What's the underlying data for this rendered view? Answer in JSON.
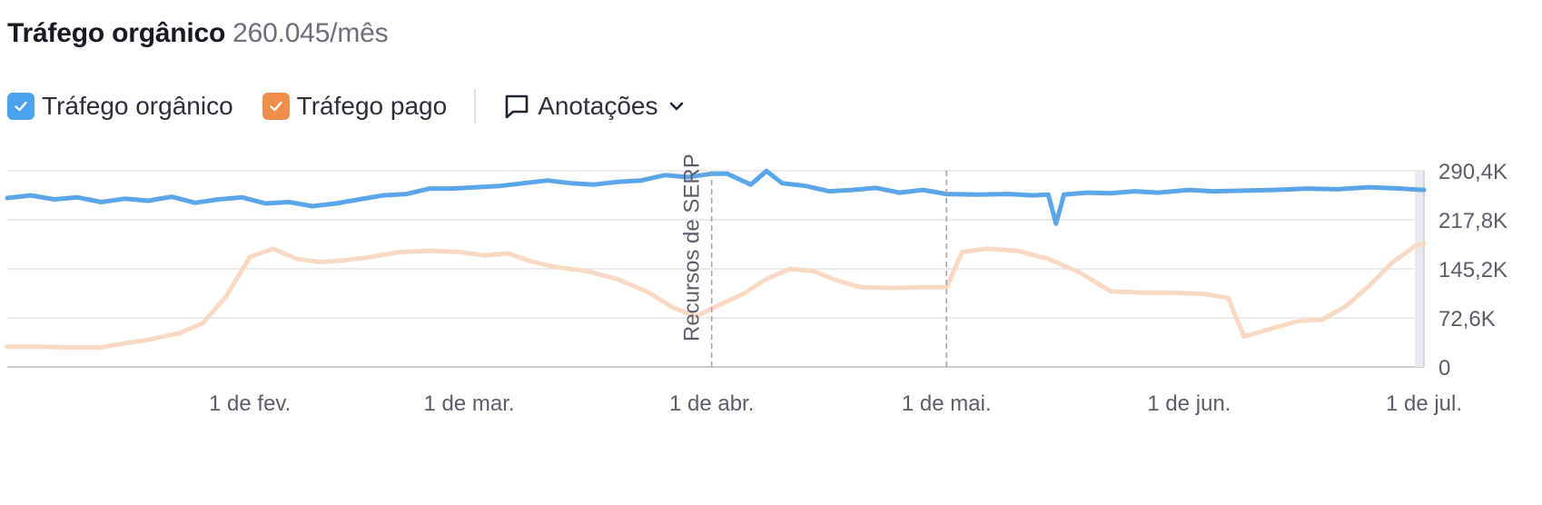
{
  "header": {
    "title": "Tráfego orgânico",
    "value": "260.045/mês"
  },
  "controls": {
    "organic_label": "Tráfego orgânico",
    "paid_label": "Tráfego pago",
    "annotations_label": "Anotações"
  },
  "colors": {
    "organic": "#5aa6e8",
    "paid": "#f9d9c4",
    "organic_checkbox": "#4aa3ec",
    "paid_checkbox": "#f08e4c"
  },
  "chart_data": {
    "type": "line",
    "title": "",
    "x_axis": {
      "type": "date",
      "range": [
        "2023-01-01",
        "2023-07-01"
      ],
      "ticks": [
        {
          "date": "2023-02-01",
          "label": "1 de fev."
        },
        {
          "date": "2023-03-01",
          "label": "1 de mar."
        },
        {
          "date": "2023-04-01",
          "label": "1 de abr."
        },
        {
          "date": "2023-05-01",
          "label": "1 de mai."
        },
        {
          "date": "2023-06-01",
          "label": "1 de jun."
        },
        {
          "date": "2023-07-01",
          "label": "1 de jul."
        }
      ]
    },
    "y_axis": {
      "position": "right",
      "range": [
        0,
        290400
      ],
      "ticks": [
        {
          "value": 290400,
          "label": "290,4K"
        },
        {
          "value": 217800,
          "label": "217,8K"
        },
        {
          "value": 145200,
          "label": "145,2K"
        },
        {
          "value": 72600,
          "label": "72,6K"
        },
        {
          "value": 0,
          "label": "0"
        }
      ]
    },
    "grid": true,
    "annotations": [
      {
        "date": "2023-04-01",
        "label": "Recursos de SERP"
      },
      {
        "date": "2023-05-01",
        "label": ""
      }
    ],
    "series": [
      {
        "name": "Tráfego orgânico",
        "color": "#5aa6e8",
        "points": [
          [
            "2023-01-01",
            250000
          ],
          [
            "2023-01-04",
            254000
          ],
          [
            "2023-01-07",
            248000
          ],
          [
            "2023-01-10",
            251000
          ],
          [
            "2023-01-13",
            244000
          ],
          [
            "2023-01-16",
            249000
          ],
          [
            "2023-01-19",
            246000
          ],
          [
            "2023-01-22",
            252000
          ],
          [
            "2023-01-25",
            243000
          ],
          [
            "2023-01-28",
            248000
          ],
          [
            "2023-01-31",
            251000
          ],
          [
            "2023-02-03",
            242000
          ],
          [
            "2023-02-06",
            244000
          ],
          [
            "2023-02-09",
            238000
          ],
          [
            "2023-02-12",
            242000
          ],
          [
            "2023-02-15",
            248000
          ],
          [
            "2023-02-18",
            254000
          ],
          [
            "2023-02-21",
            256000
          ],
          [
            "2023-02-24",
            264000
          ],
          [
            "2023-02-27",
            264000
          ],
          [
            "2023-03-02",
            266000
          ],
          [
            "2023-03-05",
            268000
          ],
          [
            "2023-03-08",
            272000
          ],
          [
            "2023-03-11",
            276000
          ],
          [
            "2023-03-14",
            272000
          ],
          [
            "2023-03-17",
            270000
          ],
          [
            "2023-03-20",
            274000
          ],
          [
            "2023-03-23",
            276000
          ],
          [
            "2023-03-26",
            284000
          ],
          [
            "2023-03-29",
            281000
          ],
          [
            "2023-04-01",
            286000
          ],
          [
            "2023-04-03",
            286000
          ],
          [
            "2023-04-06",
            270000
          ],
          [
            "2023-04-08",
            290000
          ],
          [
            "2023-04-10",
            272000
          ],
          [
            "2023-04-13",
            268000
          ],
          [
            "2023-04-16",
            260000
          ],
          [
            "2023-04-19",
            262000
          ],
          [
            "2023-04-22",
            265000
          ],
          [
            "2023-04-25",
            258000
          ],
          [
            "2023-04-28",
            262000
          ],
          [
            "2023-05-01",
            256000
          ],
          [
            "2023-05-05",
            255000
          ],
          [
            "2023-05-09",
            256000
          ],
          [
            "2023-05-12",
            254000
          ],
          [
            "2023-05-14",
            255000
          ],
          [
            "2023-05-15",
            212000
          ],
          [
            "2023-05-16",
            255000
          ],
          [
            "2023-05-19",
            258000
          ],
          [
            "2023-05-22",
            257000
          ],
          [
            "2023-05-25",
            260000
          ],
          [
            "2023-05-28",
            258000
          ],
          [
            "2023-06-01",
            262000
          ],
          [
            "2023-06-04",
            260000
          ],
          [
            "2023-06-08",
            261000
          ],
          [
            "2023-06-12",
            262000
          ],
          [
            "2023-06-16",
            264000
          ],
          [
            "2023-06-20",
            263000
          ],
          [
            "2023-06-24",
            266000
          ],
          [
            "2023-06-28",
            264000
          ],
          [
            "2023-07-01",
            262000
          ]
        ]
      },
      {
        "name": "Tráfego pago",
        "color": "#f9d9c4",
        "points": [
          [
            "2023-01-01",
            30000
          ],
          [
            "2023-01-05",
            30000
          ],
          [
            "2023-01-09",
            29000
          ],
          [
            "2023-01-13",
            29000
          ],
          [
            "2023-01-16",
            35000
          ],
          [
            "2023-01-19",
            40000
          ],
          [
            "2023-01-23",
            50000
          ],
          [
            "2023-01-26",
            65000
          ],
          [
            "2023-01-29",
            105000
          ],
          [
            "2023-02-01",
            163000
          ],
          [
            "2023-02-04",
            175000
          ],
          [
            "2023-02-07",
            160000
          ],
          [
            "2023-02-10",
            155000
          ],
          [
            "2023-02-13",
            158000
          ],
          [
            "2023-02-16",
            162000
          ],
          [
            "2023-02-20",
            170000
          ],
          [
            "2023-02-24",
            172000
          ],
          [
            "2023-02-28",
            170000
          ],
          [
            "2023-03-03",
            165000
          ],
          [
            "2023-03-06",
            168000
          ],
          [
            "2023-03-09",
            156000
          ],
          [
            "2023-03-12",
            148000
          ],
          [
            "2023-03-16",
            142000
          ],
          [
            "2023-03-20",
            130000
          ],
          [
            "2023-03-24",
            110000
          ],
          [
            "2023-03-27",
            88000
          ],
          [
            "2023-03-30",
            75000
          ],
          [
            "2023-04-02",
            92000
          ],
          [
            "2023-04-05",
            108000
          ],
          [
            "2023-04-08",
            130000
          ],
          [
            "2023-04-11",
            145000
          ],
          [
            "2023-04-14",
            142000
          ],
          [
            "2023-04-17",
            128000
          ],
          [
            "2023-04-20",
            118000
          ],
          [
            "2023-04-24",
            117000
          ],
          [
            "2023-04-28",
            118000
          ],
          [
            "2023-05-01",
            118000
          ],
          [
            "2023-05-03",
            170000
          ],
          [
            "2023-05-06",
            175000
          ],
          [
            "2023-05-10",
            172000
          ],
          [
            "2023-05-14",
            160000
          ],
          [
            "2023-05-18",
            140000
          ],
          [
            "2023-05-22",
            112000
          ],
          [
            "2023-05-26",
            110000
          ],
          [
            "2023-05-30",
            110000
          ],
          [
            "2023-06-03",
            108000
          ],
          [
            "2023-06-06",
            102000
          ],
          [
            "2023-06-08",
            45000
          ],
          [
            "2023-06-11",
            55000
          ],
          [
            "2023-06-15",
            68000
          ],
          [
            "2023-06-18",
            70000
          ],
          [
            "2023-06-21",
            90000
          ],
          [
            "2023-06-24",
            120000
          ],
          [
            "2023-06-27",
            155000
          ],
          [
            "2023-06-30",
            180000
          ],
          [
            "2023-07-01",
            182000
          ]
        ]
      }
    ]
  }
}
